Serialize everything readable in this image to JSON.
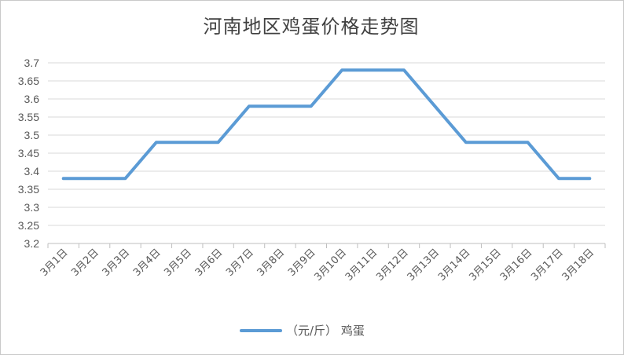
{
  "chart_data": {
    "type": "line",
    "title": "河南地区鸡蛋价格走势图",
    "categories": [
      "3月1日",
      "3月2日",
      "3月3日",
      "3月4日",
      "3月5日",
      "3月6日",
      "3月7日",
      "3月8日",
      "3月9日",
      "3月10日",
      "3月11日",
      "3月12日",
      "3月13日",
      "3月14日",
      "3月15日",
      "3月16日",
      "3月17日",
      "3月18日"
    ],
    "series": [
      {
        "name": "（元/斤） 鸡蛋",
        "values": [
          3.38,
          3.38,
          3.38,
          3.48,
          3.48,
          3.48,
          3.58,
          3.58,
          3.58,
          3.68,
          3.68,
          3.68,
          3.58,
          3.48,
          3.48,
          3.48,
          3.38,
          3.38
        ],
        "color": "#5b9bd5"
      }
    ],
    "ylim": [
      3.2,
      3.7
    ],
    "yticks": [
      "3.2",
      "3.25",
      "3.3",
      "3.35",
      "3.4",
      "3.45",
      "3.5",
      "3.55",
      "3.6",
      "3.65",
      "3.7"
    ],
    "grid": true,
    "legend": "bottom"
  }
}
